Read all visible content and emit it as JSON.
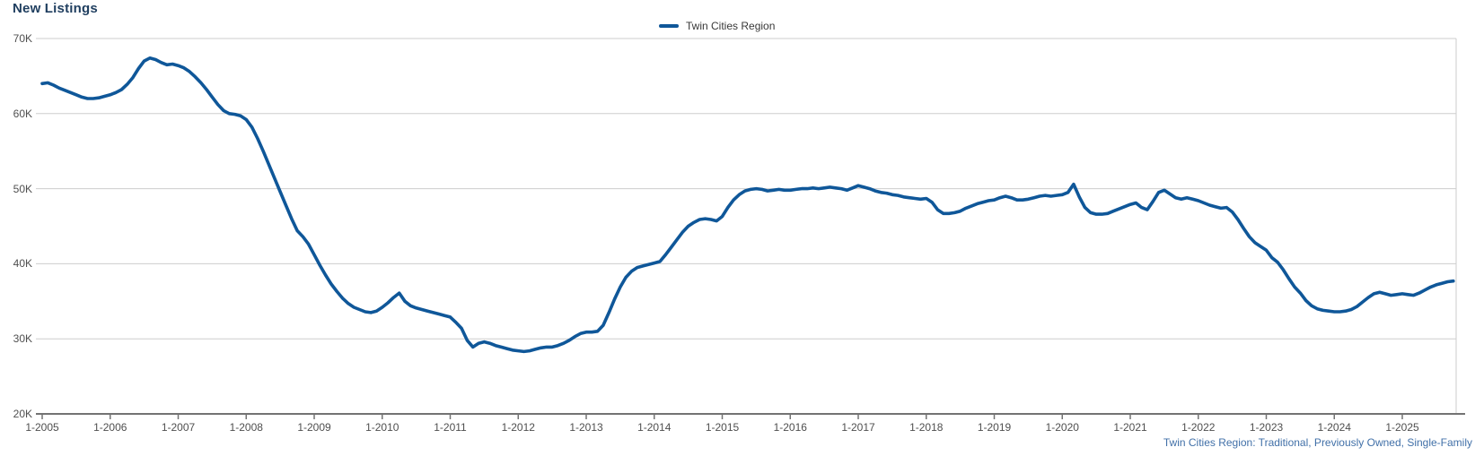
{
  "title": "New Listings",
  "legend": {
    "series_label": "Twin Cities Region",
    "swatch_color": "#0f5799"
  },
  "footnote": "Twin Cities Region: Traditional, Previously Owned, Single-Family",
  "colors": {
    "line": "#0f5799",
    "title_text": "#1f3e5f",
    "footnote_text": "#4170a8",
    "axis_text": "#4f4f4f",
    "gridline": "#cdcdcd",
    "axis_line": "#737373"
  },
  "chart_data": {
    "type": "line",
    "title": "New Listings",
    "xlabel": "",
    "ylabel": "",
    "grid": "horizontal",
    "legend_position": "top-center",
    "x_ticks": {
      "labels": [
        "1-2005",
        "1-2006",
        "1-2007",
        "1-2008",
        "1-2009",
        "1-2010",
        "1-2011",
        "1-2012",
        "1-2013",
        "1-2014",
        "1-2015",
        "1-2016",
        "1-2017",
        "1-2018",
        "1-2019",
        "1-2020",
        "1-2021",
        "1-2022",
        "1-2023",
        "1-2024",
        "1-2025"
      ],
      "years": [
        2005,
        2006,
        2007,
        2008,
        2009,
        2010,
        2011,
        2012,
        2013,
        2014,
        2015,
        2016,
        2017,
        2018,
        2019,
        2020,
        2021,
        2022,
        2023,
        2024,
        2025
      ]
    },
    "y_ticks": {
      "labels": [
        "70K",
        "60K",
        "50K",
        "40K",
        "30K",
        "20K"
      ],
      "values_thousands": [
        70,
        60,
        50,
        40,
        30,
        20
      ]
    },
    "ylim_thousands": [
      20,
      70
    ],
    "units_note": "values in thousands of listings, monthly points estimated from plot",
    "series": [
      {
        "name": "Twin Cities Region",
        "color": "#0f5799",
        "start": "2005-01",
        "interval": "monthly",
        "values_thousands": [
          64.0,
          64.1,
          63.8,
          63.4,
          63.1,
          62.8,
          62.5,
          62.2,
          62.0,
          62.0,
          62.1,
          62.3,
          62.5,
          62.8,
          63.2,
          63.9,
          64.8,
          66.0,
          67.0,
          67.4,
          67.2,
          66.8,
          66.5,
          66.6,
          66.4,
          66.1,
          65.6,
          64.9,
          64.1,
          63.2,
          62.2,
          61.2,
          60.4,
          60.0,
          59.9,
          59.7,
          59.2,
          58.2,
          56.7,
          55.0,
          53.2,
          51.4,
          49.6,
          47.8,
          46.0,
          44.4,
          43.6,
          42.6,
          41.2,
          39.8,
          38.5,
          37.3,
          36.3,
          35.4,
          34.7,
          34.2,
          33.9,
          33.6,
          33.5,
          33.7,
          34.2,
          34.8,
          35.5,
          36.1,
          35.0,
          34.4,
          34.1,
          33.9,
          33.7,
          33.5,
          33.3,
          33.1,
          32.9,
          32.2,
          31.4,
          29.8,
          28.9,
          29.4,
          29.6,
          29.4,
          29.1,
          28.9,
          28.7,
          28.5,
          28.4,
          28.3,
          28.4,
          28.6,
          28.8,
          28.9,
          28.9,
          29.1,
          29.4,
          29.8,
          30.3,
          30.7,
          30.9,
          30.9,
          31.0,
          31.8,
          33.5,
          35.3,
          36.9,
          38.2,
          39.0,
          39.5,
          39.7,
          39.9,
          40.1,
          40.3,
          41.2,
          42.2,
          43.2,
          44.2,
          45.0,
          45.5,
          45.9,
          46.0,
          45.9,
          45.7,
          46.3,
          47.5,
          48.5,
          49.2,
          49.7,
          49.9,
          50.0,
          49.9,
          49.7,
          49.8,
          49.9,
          49.8,
          49.8,
          49.9,
          50.0,
          50.0,
          50.1,
          50.0,
          50.1,
          50.2,
          50.1,
          50.0,
          49.8,
          50.1,
          50.4,
          50.2,
          50.0,
          49.7,
          49.5,
          49.4,
          49.2,
          49.1,
          48.9,
          48.8,
          48.7,
          48.6,
          48.7,
          48.2,
          47.2,
          46.7,
          46.7,
          46.8,
          47.0,
          47.4,
          47.7,
          48.0,
          48.2,
          48.4,
          48.5,
          48.8,
          49.0,
          48.8,
          48.5,
          48.5,
          48.6,
          48.8,
          49.0,
          49.1,
          49.0,
          49.1,
          49.2,
          49.5,
          50.6,
          48.9,
          47.5,
          46.8,
          46.6,
          46.6,
          46.7,
          47.0,
          47.3,
          47.6,
          47.9,
          48.1,
          47.5,
          47.2,
          48.3,
          49.5,
          49.8,
          49.3,
          48.8,
          48.6,
          48.8,
          48.6,
          48.4,
          48.1,
          47.8,
          47.6,
          47.4,
          47.5,
          46.9,
          45.9,
          44.7,
          43.6,
          42.8,
          42.3,
          41.8,
          40.8,
          40.2,
          39.2,
          38.0,
          36.9,
          36.1,
          35.1,
          34.4,
          34.0,
          33.8,
          33.7,
          33.6,
          33.6,
          33.7,
          33.9,
          34.3,
          34.9,
          35.5,
          36.0,
          36.2,
          36.0,
          35.8,
          35.9,
          36.0,
          35.9,
          35.8,
          36.1,
          36.5,
          36.9,
          37.2,
          37.4,
          37.6,
          37.7
        ]
      }
    ]
  }
}
